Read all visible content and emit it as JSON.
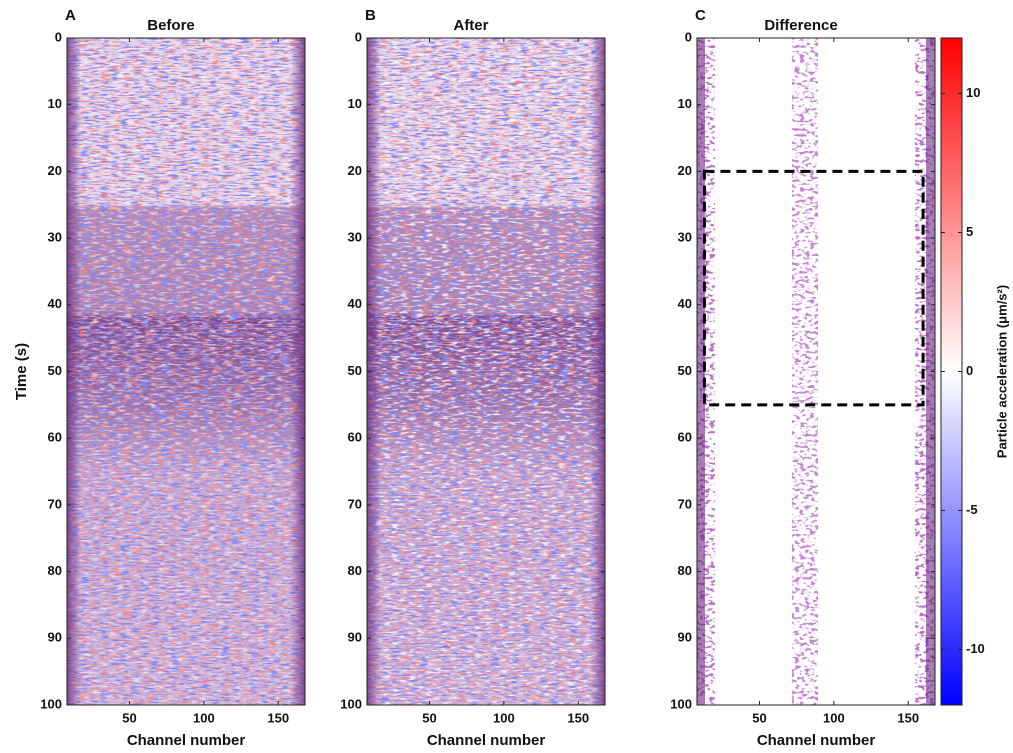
{
  "chart_data": [
    {
      "type": "heatmap",
      "label": "A",
      "title": "Before",
      "xlabel": "Channel number",
      "ylabel": "Time (s)",
      "xlim": [
        8,
        168
      ],
      "xticks": [
        50,
        100,
        150
      ],
      "ylim": [
        0,
        100
      ],
      "yticks": [
        0,
        10,
        20,
        30,
        40,
        50,
        60,
        70,
        80,
        90,
        100
      ],
      "yreverse": true
    },
    {
      "type": "heatmap",
      "label": "B",
      "title": "After",
      "xlabel": "Channel number",
      "xlim": [
        8,
        168
      ],
      "xticks": [
        50,
        100,
        150
      ],
      "ylim": [
        0,
        100
      ],
      "yticks": [
        0,
        10,
        20,
        30,
        40,
        50,
        60,
        70,
        80,
        90,
        100
      ],
      "yreverse": true
    },
    {
      "type": "heatmap",
      "label": "C",
      "title": "Difference",
      "xlabel": "Channel number",
      "xlim": [
        8,
        168
      ],
      "xticks": [
        50,
        100,
        150
      ],
      "ylim": [
        0,
        100
      ],
      "yticks": [
        0,
        10,
        20,
        30,
        40,
        50,
        60,
        70,
        80,
        90,
        100
      ],
      "yreverse": true,
      "box": {
        "x": [
          13,
          160
        ],
        "y": [
          20,
          55
        ]
      },
      "colorbar": {
        "label": "Particle acceleration (μm/s²)",
        "clim": [
          -12,
          12
        ],
        "ticks": [
          -10,
          -5,
          0,
          5,
          10
        ],
        "colors": [
          "#0000ff",
          "#ffffff",
          "#ff0000"
        ]
      }
    }
  ]
}
